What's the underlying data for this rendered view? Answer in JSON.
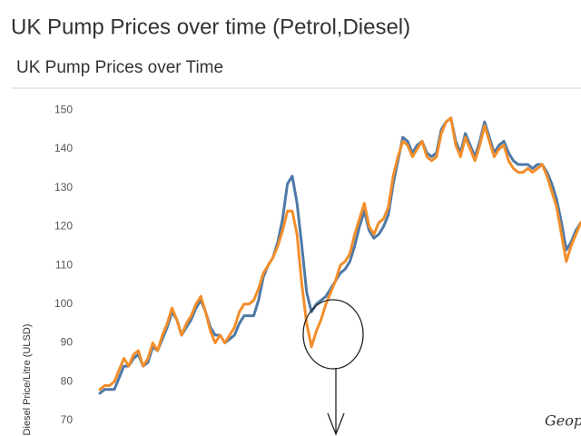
{
  "chart_data": {
    "type": "line",
    "title": "UK Pump Prices over time (Petrol,Diesel)",
    "subtitle": "UK Pump Prices over Time",
    "y_label": "Diesel Price/Litre (ULSD)",
    "annotation": "Geop",
    "ylim": [
      66,
      155
    ],
    "yticks": [
      70,
      80,
      90,
      100,
      110,
      120,
      130,
      140,
      150
    ],
    "grid": false,
    "series": [
      {
        "color": "#4e79a7",
        "values": [
          77,
          78,
          78,
          78,
          81,
          84,
          84,
          86,
          87,
          84,
          85,
          89,
          88,
          91,
          94,
          98,
          96,
          92,
          94,
          96,
          99,
          101,
          98,
          94,
          92,
          92,
          90,
          91,
          92,
          95,
          97,
          97,
          97,
          101,
          107,
          110,
          112,
          116,
          122,
          131,
          133,
          126,
          115,
          103,
          98,
          100,
          101,
          102,
          104,
          106,
          108,
          109,
          111,
          115,
          120,
          124,
          119,
          117,
          118,
          120,
          123,
          131,
          137,
          143,
          142,
          139,
          141,
          142,
          139,
          138,
          139,
          145,
          147,
          148,
          142,
          139,
          144,
          141,
          138,
          142,
          147,
          143,
          139,
          141,
          142,
          139,
          137,
          136,
          136,
          136,
          135,
          136,
          136,
          134,
          131,
          127,
          121,
          114,
          116,
          119,
          121,
          121
        ]
      },
      {
        "color": "#f28e2b",
        "values": [
          78,
          79,
          79,
          80,
          83,
          86,
          84,
          87,
          88,
          84,
          86,
          90,
          88,
          92,
          95,
          99,
          96,
          92,
          95,
          97,
          100,
          102,
          98,
          93,
          90,
          92,
          90,
          92,
          94,
          98,
          100,
          100,
          101,
          104,
          108,
          110,
          112,
          115,
          119,
          124,
          124,
          118,
          105,
          95,
          89,
          93,
          96,
          100,
          103,
          106,
          110,
          111,
          113,
          118,
          122,
          126,
          120,
          118,
          121,
          122,
          125,
          133,
          138,
          142,
          141,
          138,
          140,
          142,
          138,
          137,
          138,
          144,
          147,
          148,
          141,
          138,
          143,
          140,
          137,
          141,
          146,
          142,
          138,
          140,
          141,
          137,
          135,
          134,
          134,
          135,
          134,
          135,
          136,
          133,
          129,
          125,
          118,
          111,
          115,
          118,
          121,
          122
        ]
      }
    ]
  }
}
